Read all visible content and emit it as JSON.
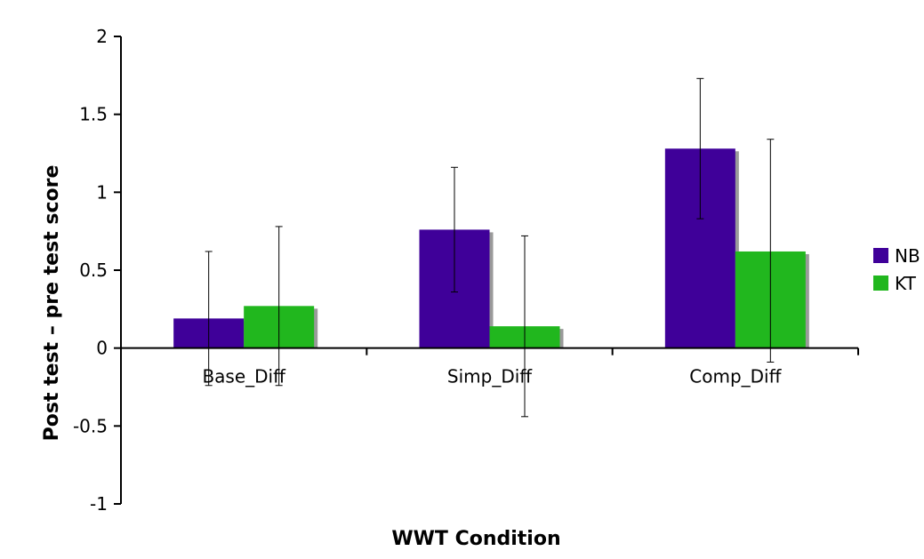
{
  "chart_data": {
    "type": "bar",
    "title": "",
    "xlabel": "WWT Condition",
    "ylabel": "Post test – pre test score",
    "categories": [
      "Base_Diff",
      "Simp_Diff",
      "Comp_Diff"
    ],
    "series": [
      {
        "name": "NB",
        "color": "#3f0099",
        "values": [
          0.19,
          0.76,
          1.28
        ],
        "error_upper": [
          0.62,
          1.16,
          1.73
        ],
        "error_lower": [
          -0.24,
          0.36,
          0.83
        ]
      },
      {
        "name": "KT",
        "color": "#21b71e",
        "values": [
          0.27,
          0.14,
          0.62
        ],
        "error_upper": [
          0.78,
          0.72,
          1.34
        ],
        "error_lower": [
          -0.24,
          -0.44,
          -0.09
        ]
      }
    ],
    "ylim": [
      -1,
      2
    ],
    "yticks": [
      -1,
      -0.5,
      0,
      0.5,
      1,
      1.5,
      2
    ],
    "ytick_labels": [
      "-1",
      "-0.5",
      "0",
      "0.5",
      "1",
      "1.5",
      "2"
    ],
    "grid": false,
    "legend_position": "right"
  }
}
